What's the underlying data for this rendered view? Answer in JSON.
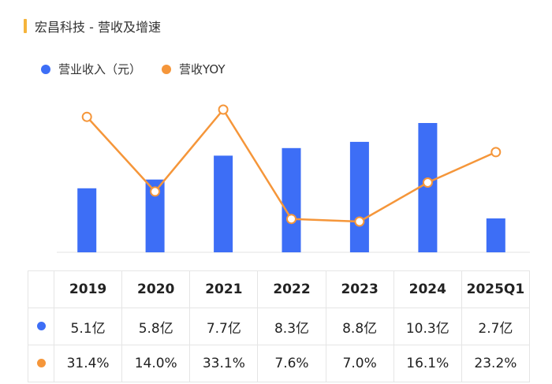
{
  "header": {
    "title": "宏昌科技 - 营收及增速"
  },
  "colors": {
    "revenue": "#3d6ef6",
    "yoy": "#f5963a",
    "title_bar": "#f5b43c"
  },
  "legend": {
    "revenue_label": "营业收入（元）",
    "yoy_label": "营收YOY"
  },
  "table": {
    "years": [
      "2019",
      "2020",
      "2021",
      "2022",
      "2023",
      "2024",
      "2025Q1"
    ],
    "revenue_row": [
      "5.1亿",
      "5.8亿",
      "7.7亿",
      "8.3亿",
      "8.8亿",
      "10.3亿",
      "2.7亿"
    ],
    "yoy_row": [
      "31.4%",
      "14.0%",
      "33.1%",
      "7.6%",
      "7.0%",
      "16.1%",
      "23.2%"
    ]
  },
  "chart_data": {
    "type": "bar",
    "categories": [
      "2019",
      "2020",
      "2021",
      "2022",
      "2023",
      "2024",
      "2025Q1"
    ],
    "series": [
      {
        "name": "营业收入（元）",
        "type": "bar",
        "unit": "亿",
        "values": [
          5.1,
          5.8,
          7.7,
          8.3,
          8.8,
          10.3,
          2.7
        ]
      },
      {
        "name": "营收YOY",
        "type": "line",
        "unit": "%",
        "values": [
          31.4,
          14.0,
          33.1,
          7.6,
          7.0,
          16.1,
          23.2
        ]
      }
    ],
    "grid": false,
    "legend_position": "top-left"
  }
}
